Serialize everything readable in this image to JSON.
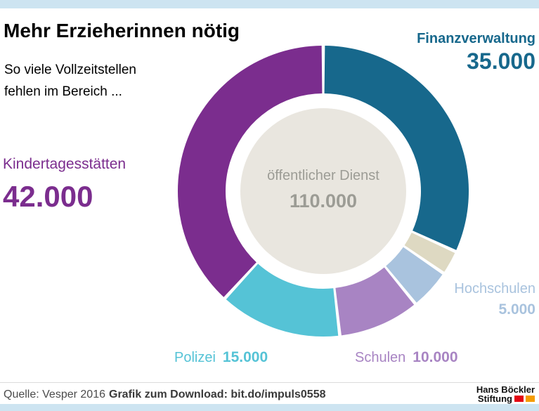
{
  "header": {
    "title": "Mehr Erzieherinnen nötig",
    "subtitle_line1": "So viele Vollzeitstellen",
    "subtitle_line2": "fehlen im Bereich ..."
  },
  "chart_data": {
    "type": "pie",
    "title": "Mehr Erzieherinnen nötig",
    "subtitle": "So viele Vollzeitstellen fehlen im Bereich ...",
    "center_label": "öffentlicher Dienst",
    "center_value": 110000,
    "center_value_display": "110.000",
    "segments": [
      {
        "label": "Finanzverwaltung",
        "value": 35000,
        "display": "35.000",
        "color": "#17688c"
      },
      {
        "label": "",
        "value": 3000,
        "display": "",
        "color": "#ded9c2"
      },
      {
        "label": "Hochschulen",
        "value": 5000,
        "display": "5.000",
        "color": "#a9c3de"
      },
      {
        "label": "Schulen",
        "value": 10000,
        "display": "10.000",
        "color": "#a884c3"
      },
      {
        "label": "Polizei",
        "value": 15000,
        "display": "15.000",
        "color": "#55c3d6"
      },
      {
        "label": "Kindertagesstätten",
        "value": 42000,
        "display": "42.000",
        "color": "#7b2d8e"
      }
    ],
    "legend_position": "around-donut",
    "grid": false
  },
  "footer": {
    "source": "Quelle: Vesper 2016",
    "download": "Grafik zum Download: bit.do/impuls0558",
    "logo_line1": "Hans Böckler",
    "logo_line2": "Stiftung"
  },
  "colors": {
    "accent_bar": "#cde4f1",
    "center_circle": "#e9e6df",
    "center_text": "#9c9c95"
  }
}
